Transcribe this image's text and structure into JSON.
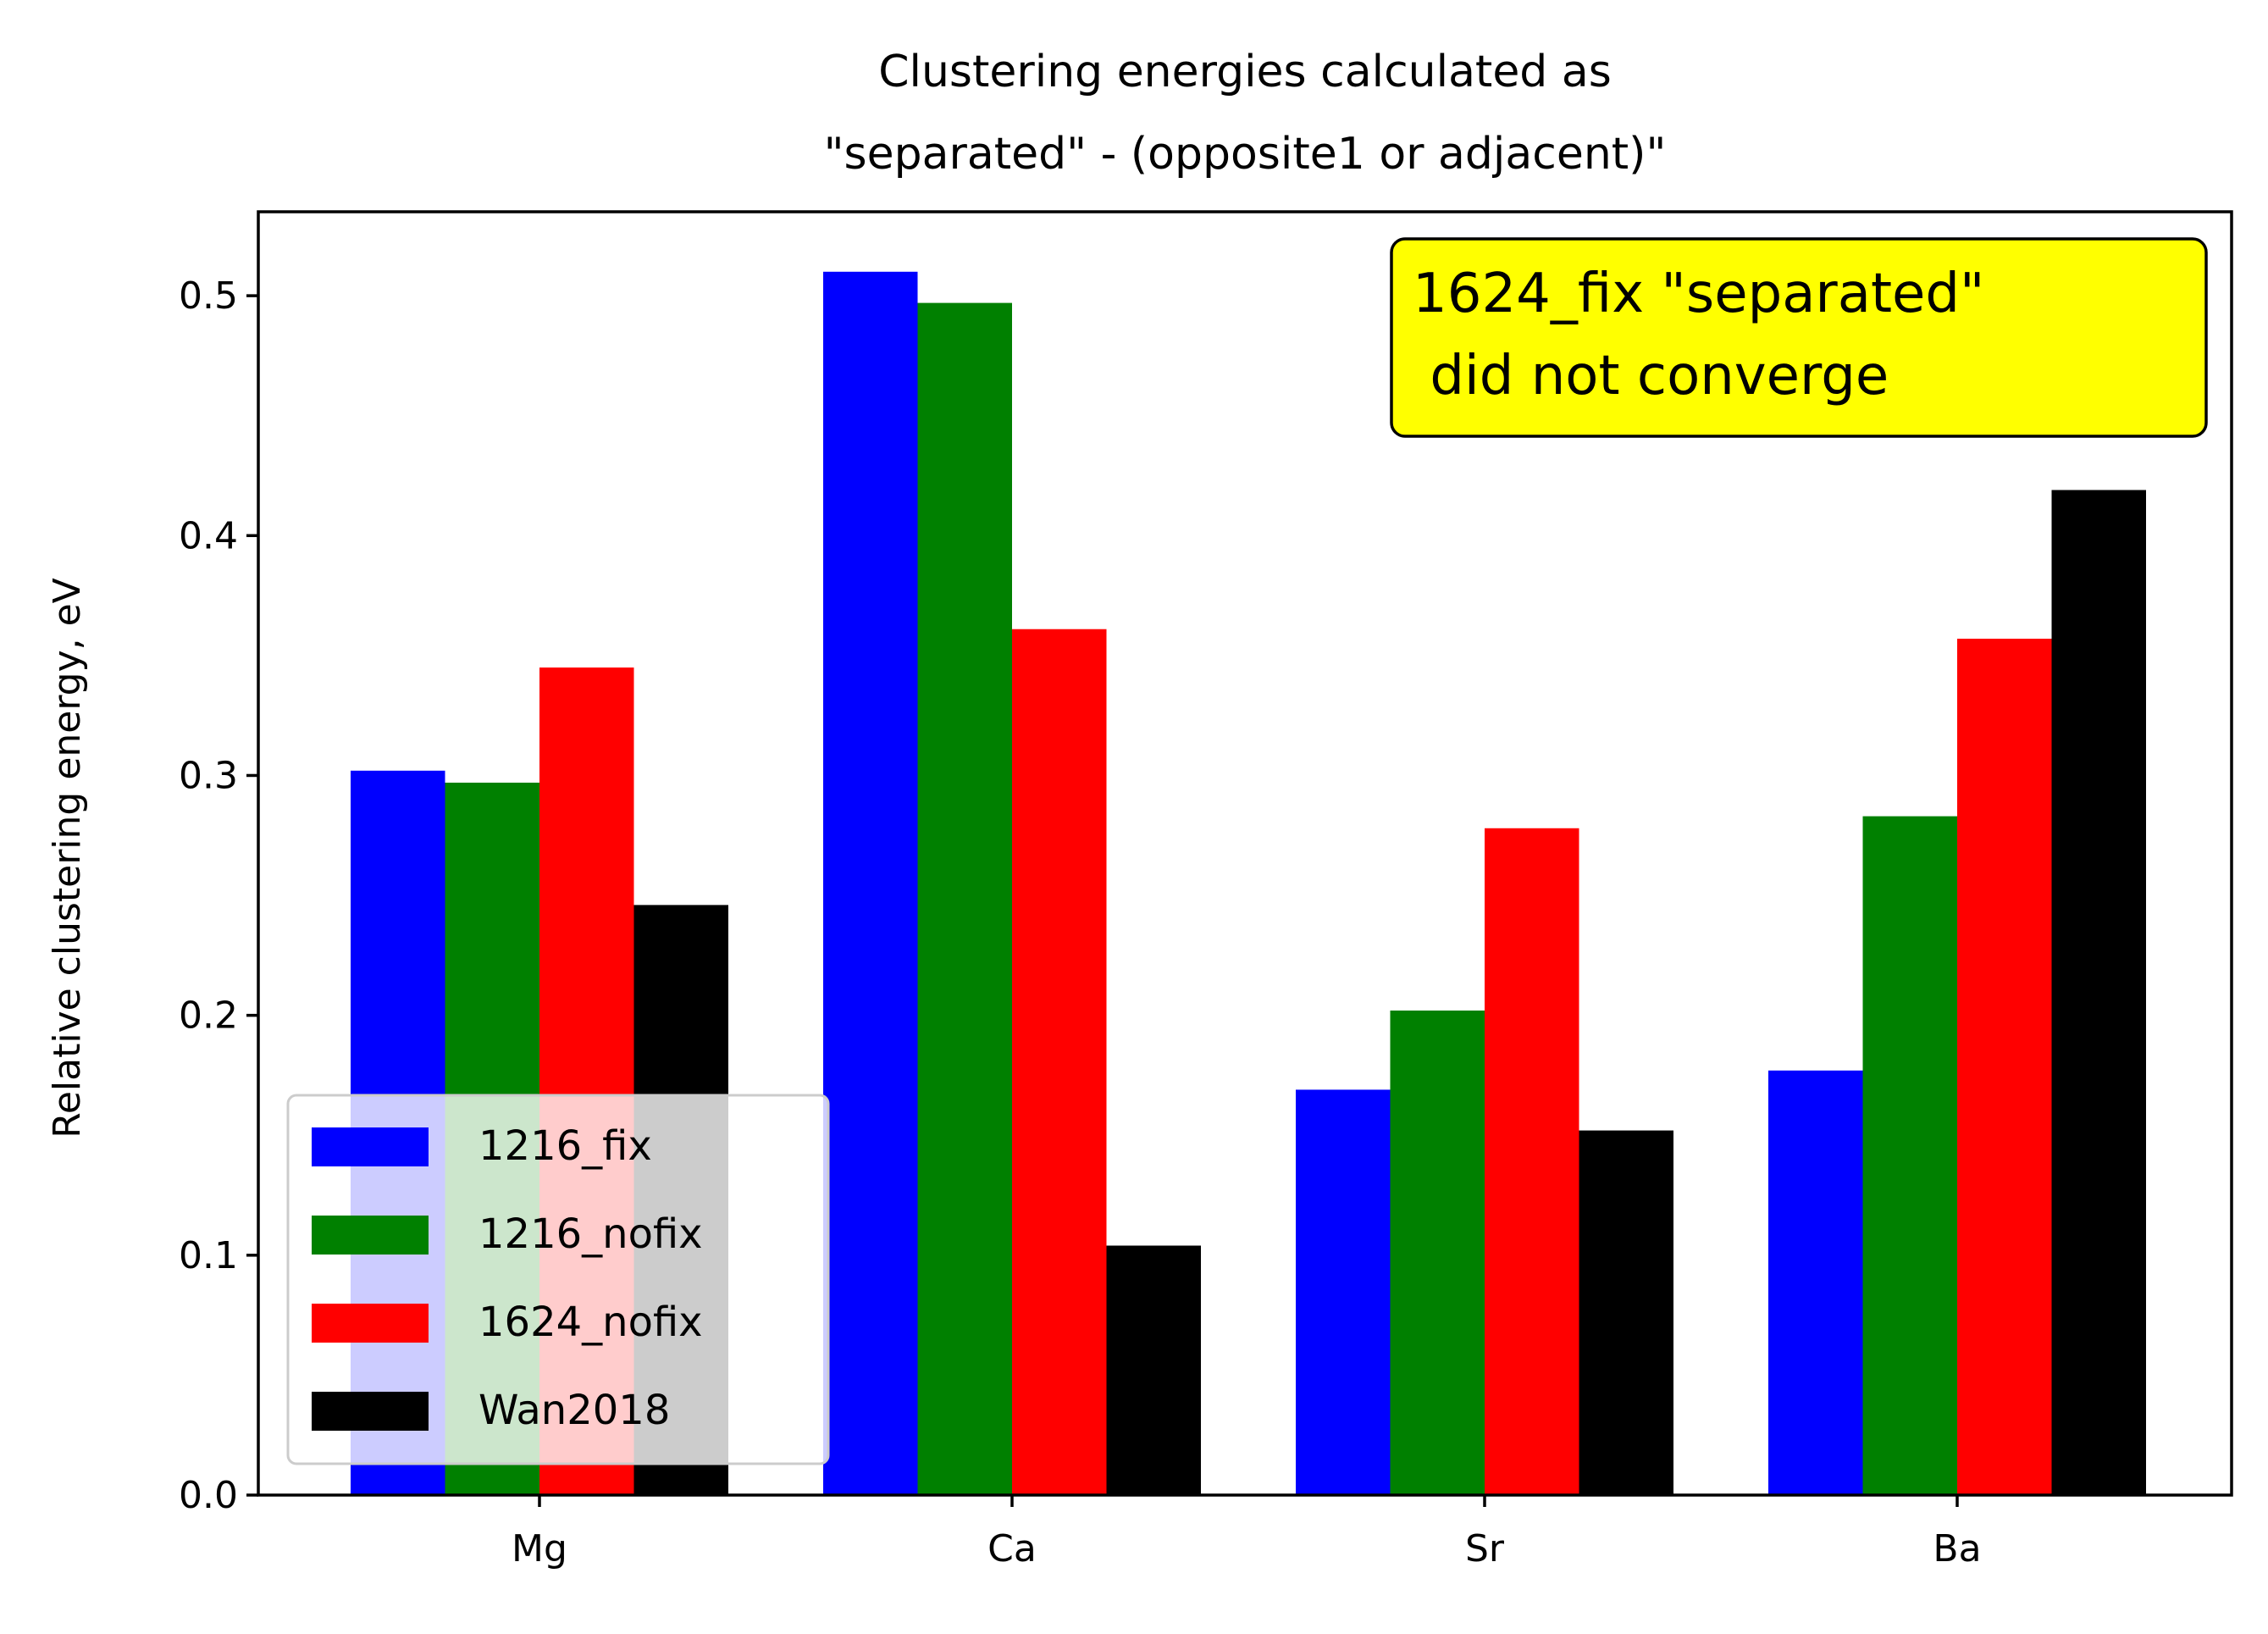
{
  "chart_data": {
    "type": "bar",
    "title": "Clustering energies calculated as\n\"separated\" - (opposite1 or adjacent)\"",
    "xlabel": "",
    "ylabel": "Relative clustering energy, eV",
    "categories": [
      "Mg",
      "Ca",
      "Sr",
      "Ba"
    ],
    "ylim": [
      0,
      0.535
    ],
    "yticks": [
      0.0,
      0.1,
      0.2,
      0.3,
      0.4,
      0.5
    ],
    "ytick_labels": [
      "0.0",
      "0.1",
      "0.2",
      "0.3",
      "0.4",
      "0.5"
    ],
    "grid": false,
    "series": [
      {
        "name": "1216_fix",
        "color": "#0000ff",
        "values": [
          0.302,
          0.51,
          0.169,
          0.177
        ]
      },
      {
        "name": "1216_nofix",
        "color": "#008000",
        "values": [
          0.297,
          0.497,
          0.202,
          0.283
        ]
      },
      {
        "name": "1624_nofix",
        "color": "#ff0000",
        "values": [
          0.345,
          0.361,
          0.278,
          0.357
        ]
      },
      {
        "name": "Wan2018",
        "color": "#000000",
        "values": [
          0.246,
          0.104,
          0.152,
          0.419
        ]
      }
    ],
    "legend": {
      "placement": "lower-left"
    },
    "annotation": {
      "text": "1624_fix \"separated\"\n did not converge",
      "background": "#ffff00",
      "placement": "top-right"
    }
  }
}
